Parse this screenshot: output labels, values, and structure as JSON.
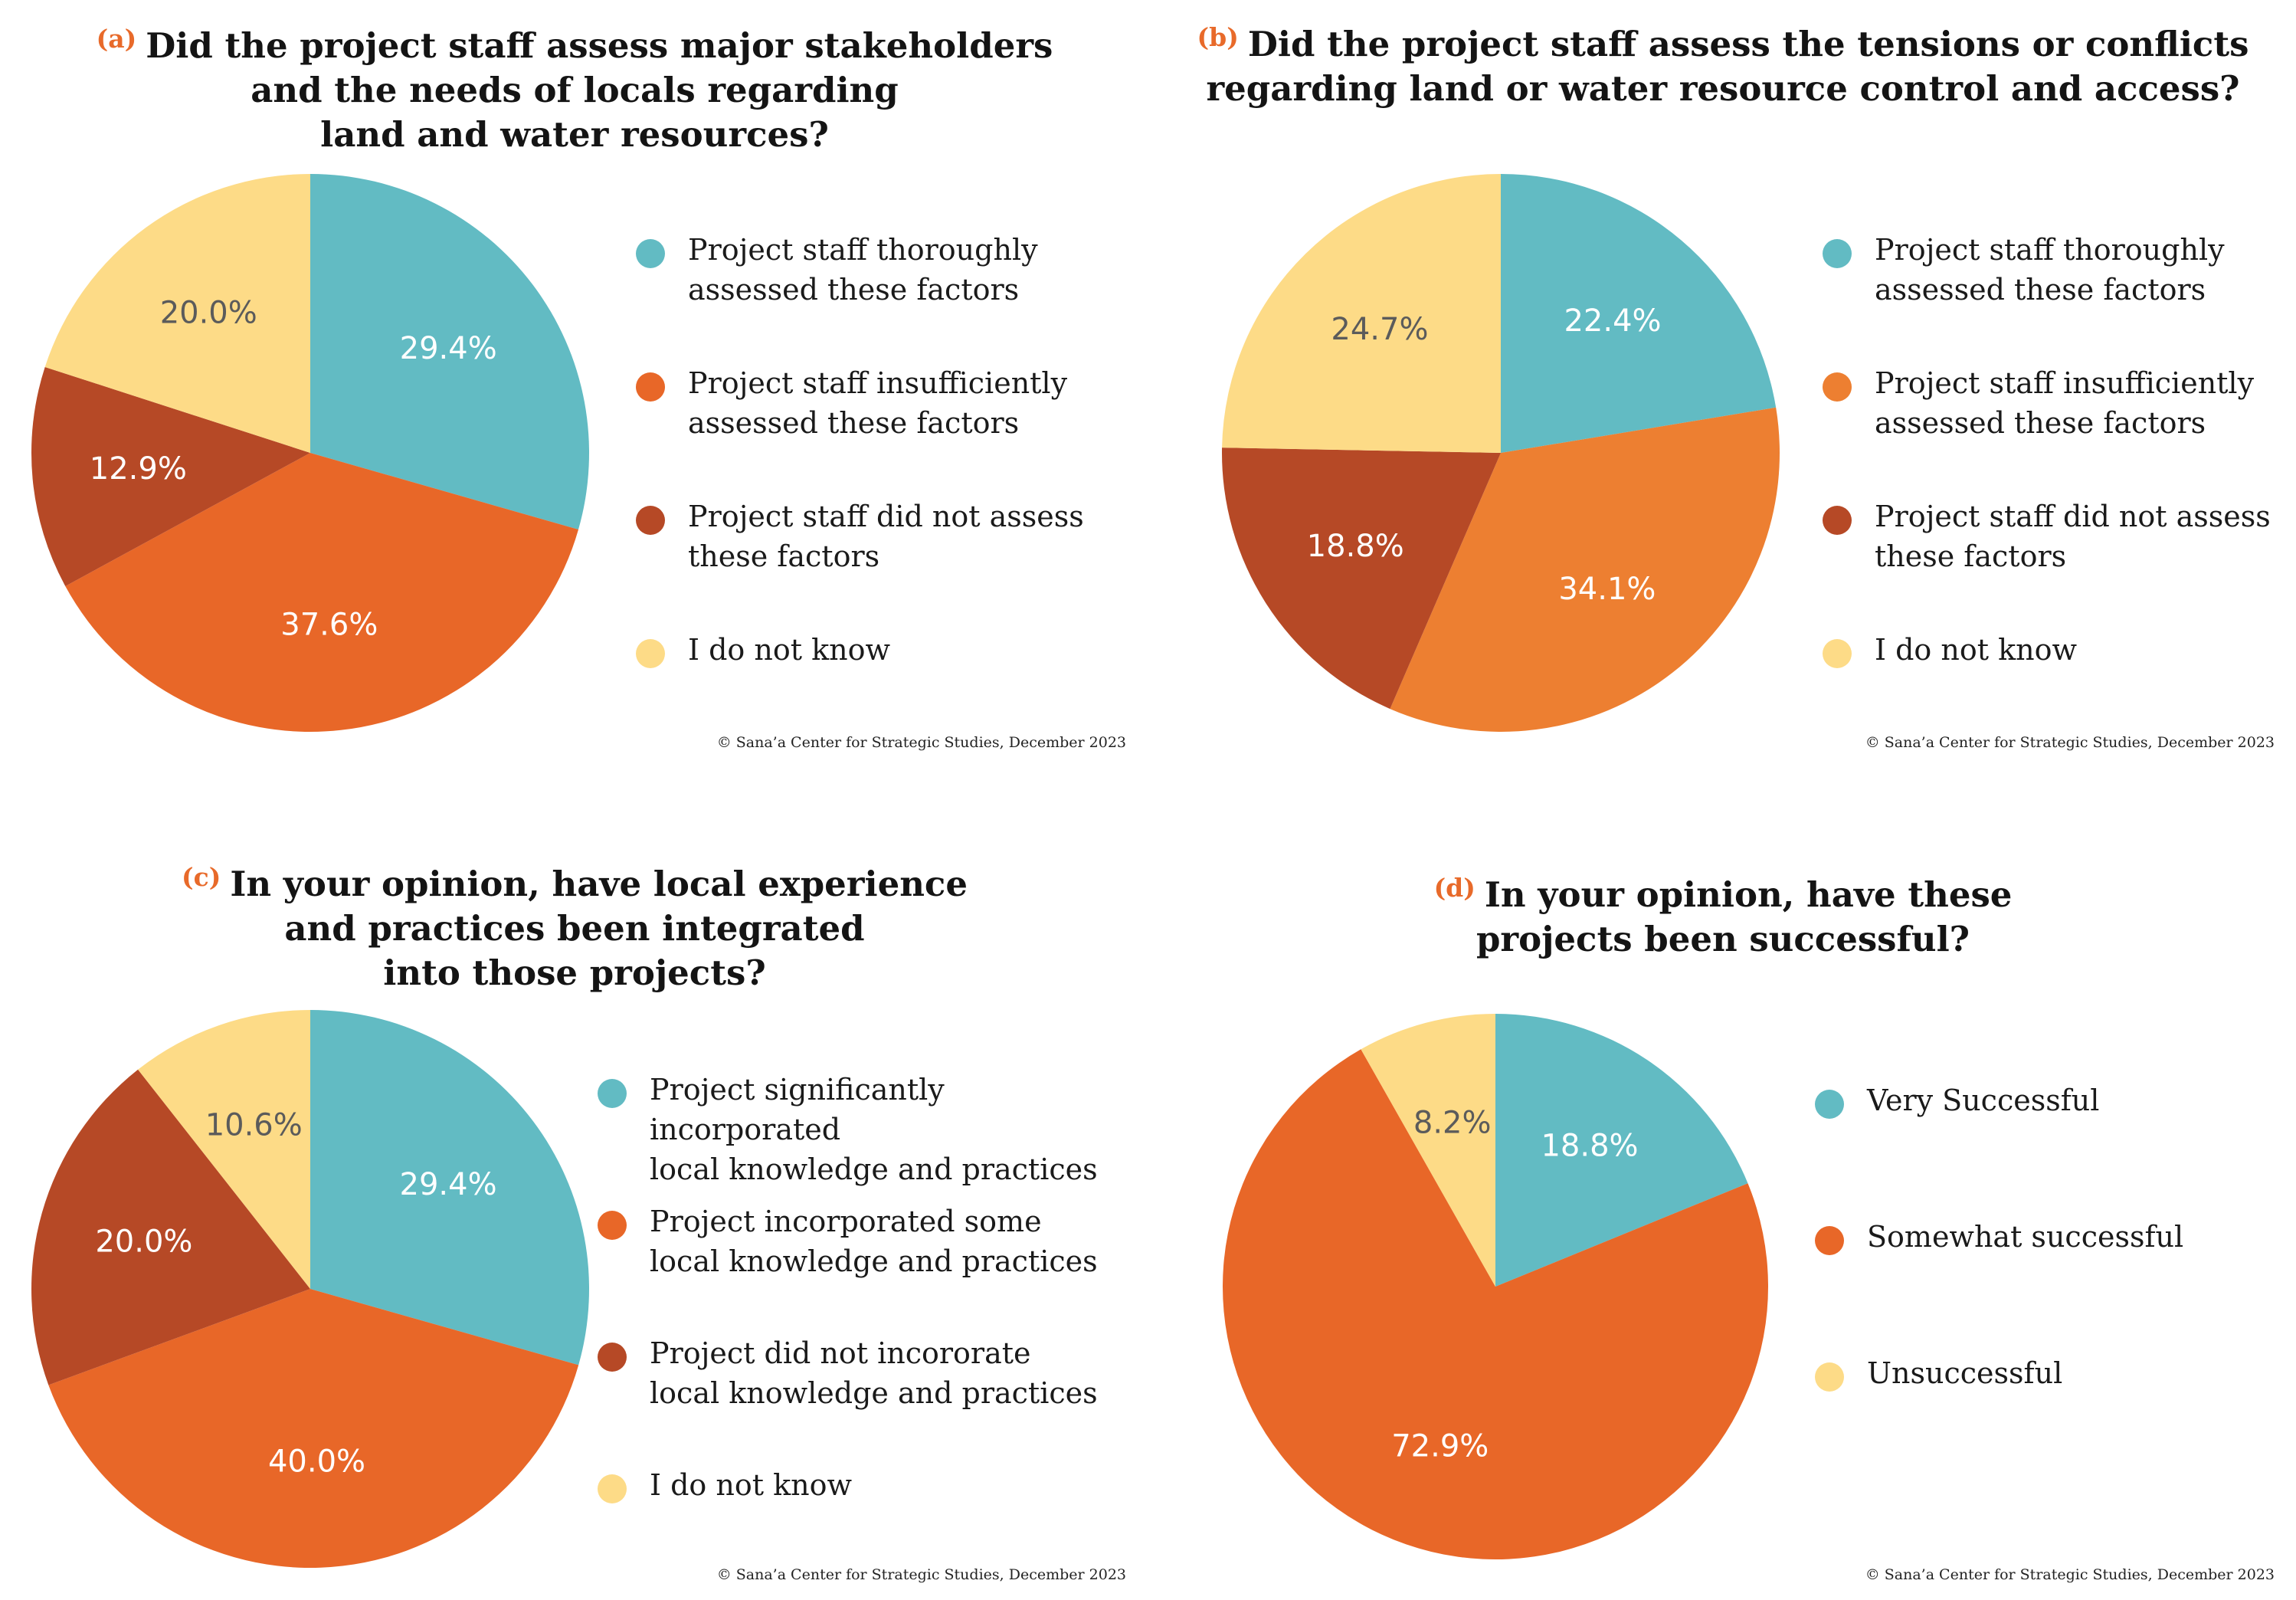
{
  "colors": {
    "teal": "#62bbc3",
    "orange": "#e86728",
    "orange_light": "#ed7f31",
    "rust": "#b64926",
    "yellow": "#fddb87",
    "label_dark": "#5b5b5b",
    "letter": "#e86a2a"
  },
  "chart_data": [
    {
      "type": "pie",
      "letter": "(a)",
      "title": [
        "Did the project staff assess major stakeholders",
        "and the needs of locals regarding",
        "land and water resources?"
      ],
      "slices": [
        {
          "label": "Project staff thoroughly assessed these factors",
          "legend_lines": [
            "Project staff thoroughly",
            "assessed these factors"
          ],
          "value": 29.4,
          "display": "29.4%",
          "color": "#62bbc3"
        },
        {
          "label": "Project staff insufficiently assessed these factors",
          "legend_lines": [
            "Project staff insufficiently",
            "assessed these factors"
          ],
          "value": 37.6,
          "display": "37.6%",
          "color": "#e86728"
        },
        {
          "label": "Project staff did not assess these factors",
          "legend_lines": [
            "Project staff did not assess",
            "these factors"
          ],
          "value": 12.9,
          "display": "12.9%",
          "color": "#b64926"
        },
        {
          "label": "I do not know",
          "legend_lines": [
            "I do not know"
          ],
          "value": 20.0,
          "display": "20.0%",
          "color": "#fddb87"
        }
      ],
      "footer": "© Sana’a Center for Strategic Studies, December 2023"
    },
    {
      "type": "pie",
      "letter": "(b)",
      "title": [
        "Did the project staff assess the tensions or conflicts",
        "regarding land or water resource control and access?"
      ],
      "slices": [
        {
          "label": "Project staff thoroughly assessed these factors",
          "legend_lines": [
            "Project staff thoroughly",
            "assessed these factors"
          ],
          "value": 22.4,
          "display": "22.4%",
          "color": "#62bbc3"
        },
        {
          "label": "Project staff insufficiently assessed these factors",
          "legend_lines": [
            "Project staff insufficiently",
            "assessed these factors"
          ],
          "value": 34.1,
          "display": "34.1%",
          "color": "#ed7f31"
        },
        {
          "label": "Project staff did not assess these factors",
          "legend_lines": [
            "Project staff did not assess",
            "these factors"
          ],
          "value": 18.8,
          "display": "18.8%",
          "color": "#b64926"
        },
        {
          "label": "I do not know",
          "legend_lines": [
            "I do not know"
          ],
          "value": 24.7,
          "display": "24.7%",
          "color": "#fddb87"
        }
      ],
      "footer": "© Sana’a Center for Strategic Studies, December 2023"
    },
    {
      "type": "pie",
      "letter": "(c)",
      "title": [
        "In your opinion, have local experience",
        "and practices been integrated",
        "into those projects?"
      ],
      "slices": [
        {
          "label": "Project significantly incorporated local knowledge and practices",
          "legend_lines": [
            "Project significantly incorporated",
            "local knowledge and practices"
          ],
          "value": 29.4,
          "display": "29.4%",
          "color": "#62bbc3"
        },
        {
          "label": "Project incorporated some local knowledge and practices",
          "legend_lines": [
            "Project incorporated some",
            "local knowledge and practices"
          ],
          "value": 40.0,
          "display": "40.0%",
          "color": "#e86728"
        },
        {
          "label": "Project did not incororate local knowledge and practices",
          "legend_lines": [
            "Project did not incororate",
            "local knowledge and practices"
          ],
          "value": 20.0,
          "display": "20.0%",
          "color": "#b64926"
        },
        {
          "label": "I do not know",
          "legend_lines": [
            "I do not know"
          ],
          "value": 10.6,
          "display": "10.6%",
          "color": "#fddb87"
        }
      ],
      "footer": "© Sana’a Center for Strategic Studies, December 2023"
    },
    {
      "type": "pie",
      "letter": "(d)",
      "title": [
        "In your opinion, have these",
        "projects been successful?"
      ],
      "slices": [
        {
          "label": "Very Successful",
          "legend_lines": [
            "Very Successful"
          ],
          "value": 18.8,
          "display": "18.8%",
          "color": "#62bbc3"
        },
        {
          "label": "Somewhat successful",
          "legend_lines": [
            "Somewhat successful"
          ],
          "value": 72.9,
          "display": "72.9%",
          "color": "#e86728"
        },
        {
          "label": "Unsuccessful",
          "legend_lines": [
            "Unsuccessful"
          ],
          "value": 8.2,
          "display": "8.2%",
          "color": "#fddb87"
        }
      ],
      "footer": "© Sana’a Center for Strategic Studies, December 2023"
    }
  ]
}
